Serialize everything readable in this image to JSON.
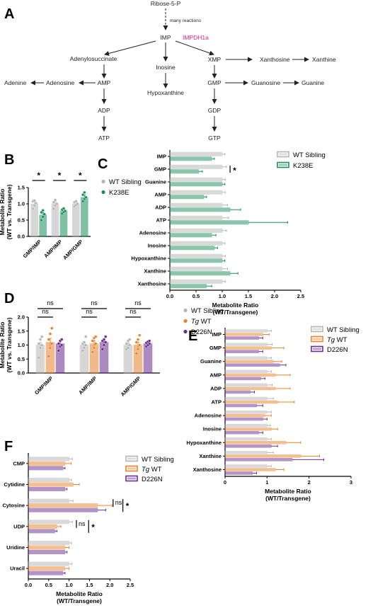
{
  "panels": {
    "A": "A",
    "B": "B",
    "C": "C",
    "D": "D",
    "E": "E",
    "F": "F"
  },
  "colors": {
    "wt": "#b5b5b5",
    "k238e": "#1a8f5c",
    "tgwt": "#e8822a",
    "d226n": "#6a2c8e",
    "enzyme": "#e0248a"
  },
  "pathway": {
    "nodes": {
      "ribose": "Ribose-5-P",
      "many_reactions": "many reactions",
      "imp": "IMP",
      "impdh": "IMPDH1a",
      "adenylosuccinate": "Adenylosuccinate",
      "inosine": "Inosine",
      "xmp": "XMP",
      "xanthosine": "Xanthosine",
      "xanthine": "Xanthine",
      "adenine": "Adenine",
      "adenosine": "Adenosine",
      "amp": "AMP",
      "hypoxanthine": "Hypoxanthine",
      "gmp": "GMP",
      "guanosine": "Guanosine",
      "guanine": "Guanine",
      "adp": "ADP",
      "gdp": "GDP",
      "atp": "ATP",
      "gtp": "GTP"
    }
  },
  "chart_data": [
    {
      "id": "B",
      "type": "bar",
      "categories": [
        "GMP/IMP",
        "AMP/IMP",
        "AMP/GMP"
      ],
      "ylabel": "Metabolite Ratio\n(WT vs. Transgene)",
      "ylabel_lines": [
        "Metabolite Ratio",
        "(WT vs. Transgene)"
      ],
      "ylim": [
        0.0,
        1.5
      ],
      "yticks": [
        "0.0",
        "0.5",
        "1.0",
        "1.5"
      ],
      "legend": [
        "WT Sibling",
        "K238E"
      ],
      "series": [
        {
          "name": "WT Sibling",
          "values": [
            1.0,
            1.0,
            1.0
          ],
          "err": [
            0.08,
            0.08,
            0.06
          ],
          "points": [
            [
              0.85,
              0.95,
              1.02,
              1.08,
              1.1
            ],
            [
              0.85,
              0.95,
              1.0,
              1.05,
              1.12
            ],
            [
              0.92,
              0.97,
              1.0,
              1.05,
              1.08
            ]
          ]
        },
        {
          "name": "K238E",
          "values": [
            0.66,
            0.78,
            1.2
          ],
          "err": [
            0.07,
            0.05,
            0.07
          ],
          "points": [
            [
              0.5,
              0.6,
              0.68,
              0.74,
              0.8
            ],
            [
              0.7,
              0.75,
              0.78,
              0.82,
              0.86
            ],
            [
              1.08,
              1.15,
              1.2,
              1.28,
              1.35
            ]
          ]
        }
      ],
      "significance": [
        "*",
        "*",
        "*"
      ]
    },
    {
      "id": "C",
      "type": "bar",
      "orientation": "horizontal",
      "categories": [
        "IMP",
        "GMP",
        "Guanine",
        "AMP",
        "ADP",
        "ATP",
        "Adenosine",
        "Inosine",
        "Hypoxanthine",
        "Xanthine",
        "Xanthosine"
      ],
      "xlabel": "Metabolite Ratio\n(WT/Transgene)",
      "xlabel_lines": [
        "Metabolite Ratio",
        "(WT/Transgene)"
      ],
      "xlim": [
        0.0,
        2.5
      ],
      "xticks": [
        "0.0",
        "0.5",
        "1.0",
        "1.5",
        "2.0",
        "2.5"
      ],
      "legend": [
        "WT Sibling",
        "K238E"
      ],
      "series": [
        {
          "name": "WT Sibling",
          "values": [
            1.0,
            1.0,
            1.0,
            1.0,
            1.0,
            1.0,
            1.0,
            1.0,
            1.0,
            1.0,
            1.0
          ],
          "err": [
            0.05,
            0.08,
            0.06,
            0.06,
            0.1,
            0.12,
            0.08,
            0.05,
            0.06,
            0.1,
            0.06
          ]
        },
        {
          "name": "K238E",
          "values": [
            0.8,
            0.55,
            1.0,
            0.65,
            1.15,
            1.5,
            0.8,
            0.85,
            1.0,
            1.15,
            0.7
          ],
          "err": [
            0.05,
            0.07,
            0.05,
            0.05,
            0.2,
            0.75,
            0.08,
            0.06,
            0.05,
            0.15,
            0.1
          ]
        }
      ],
      "significance": {
        "GMP": "*"
      }
    },
    {
      "id": "D",
      "type": "bar",
      "categories": [
        "GMP/IMP",
        "AMP/IMP",
        "AMP/GMP"
      ],
      "ylabel": "Metabolite Ratio\n(WT vs. Transgene)",
      "ylabel_lines": [
        "Metabolite Ratio",
        "(WT vs. Transgene)"
      ],
      "ylim": [
        0.0,
        2.0
      ],
      "yticks": [
        "0.0",
        "0.5",
        "1.0",
        "1.5",
        "2.0"
      ],
      "legend": [
        "WT Sibling",
        "Tg WT",
        "D226N"
      ],
      "series": [
        {
          "name": "WT Sibling",
          "values": [
            1.0,
            1.0,
            1.0
          ],
          "err": [
            0.09,
            0.08,
            0.07
          ],
          "points": [
            [
              0.55,
              0.9,
              1.0,
              1.05,
              1.2,
              1.3
            ],
            [
              0.8,
              0.9,
              1.0,
              1.05,
              1.1,
              1.3
            ],
            [
              0.85,
              0.9,
              1.0,
              1.05,
              1.15,
              1.2
            ]
          ]
        },
        {
          "name": "Tg WT",
          "values": [
            1.1,
            1.05,
            1.0
          ],
          "err": [
            0.14,
            0.1,
            0.1
          ],
          "points": [
            [
              0.6,
              0.9,
              1.05,
              1.2,
              1.4,
              1.6
            ],
            [
              0.75,
              0.9,
              1.05,
              1.15,
              1.25,
              1.3
            ],
            [
              0.7,
              0.85,
              1.0,
              1.1,
              1.2,
              1.35
            ]
          ]
        },
        {
          "name": "D226N",
          "values": [
            1.05,
            1.1,
            1.05
          ],
          "err": [
            0.08,
            0.07,
            0.05
          ],
          "points": [
            [
              0.8,
              0.95,
              1.0,
              1.05,
              1.15,
              1.2
            ],
            [
              0.85,
              1.0,
              1.1,
              1.15,
              1.2,
              1.3
            ],
            [
              0.95,
              1.0,
              1.05,
              1.08,
              1.12,
              1.15
            ]
          ]
        }
      ],
      "significance": [
        "ns",
        "ns",
        "ns",
        "ns",
        "ns",
        "ns"
      ]
    },
    {
      "id": "E",
      "type": "bar",
      "orientation": "horizontal",
      "categories": [
        "IMP",
        "GMP",
        "Guanine",
        "AMP",
        "ADP",
        "ATP",
        "Adenosine",
        "Inosine",
        "Hypoxanthine",
        "Xanthine",
        "Xanthosine"
      ],
      "xlabel": "Metabolite Ratio\n(WT/Transgene)",
      "xlabel_lines": [
        "Metabolite Ratio",
        "(WT/Transgene)"
      ],
      "xlim": [
        0,
        3
      ],
      "xticks": [
        "0",
        "1",
        "2",
        "3"
      ],
      "legend": [
        "WT Sibling",
        "Tg WT",
        "D226N"
      ],
      "series": [
        {
          "name": "WT Sibling",
          "values": [
            1.0,
            1.0,
            1.0,
            1.0,
            1.0,
            1.0,
            1.0,
            1.0,
            1.0,
            1.0,
            1.0
          ],
          "err": [
            0.1,
            0.12,
            0.1,
            0.1,
            0.12,
            0.15,
            0.1,
            0.08,
            0.1,
            0.15,
            0.1
          ]
        },
        {
          "name": "Tg WT",
          "values": [
            0.9,
            1.1,
            1.15,
            1.2,
            1.2,
            1.25,
            0.95,
            1.1,
            1.45,
            1.8,
            1.2
          ],
          "err": [
            0.15,
            0.3,
            0.2,
            0.35,
            0.35,
            0.4,
            0.15,
            0.15,
            0.35,
            0.45,
            0.2
          ]
        },
        {
          "name": "D226N",
          "values": [
            0.8,
            0.8,
            1.3,
            0.85,
            0.6,
            0.75,
            0.9,
            0.8,
            1.1,
            1.6,
            0.65
          ],
          "err": [
            0.1,
            0.1,
            0.15,
            0.1,
            0.1,
            0.15,
            0.1,
            0.1,
            0.15,
            0.75,
            0.1
          ]
        }
      ]
    },
    {
      "id": "F",
      "type": "bar",
      "orientation": "horizontal",
      "categories": [
        "CMP",
        "Cytidine",
        "Cytosine",
        "UDP",
        "Uridine",
        "Uracil"
      ],
      "xlabel": "Metabolite Ratio\n(WT/Transgene)",
      "xlabel_lines": [
        "Metabolite Ratio",
        "(WT/Transgene)"
      ],
      "xlim": [
        0.0,
        2.5
      ],
      "xticks": [
        "0.0",
        "0.5",
        "1.0",
        "1.5",
        "2.0",
        "2.5"
      ],
      "legend": [
        "WT Sibling",
        "Tg WT",
        "D226N"
      ],
      "series": [
        {
          "name": "WT Sibling",
          "values": [
            1.0,
            1.0,
            1.0,
            1.0,
            1.0,
            1.0
          ],
          "err": [
            0.08,
            0.06,
            0.1,
            0.08,
            0.06,
            0.07
          ]
        },
        {
          "name": "Tg WT",
          "values": [
            0.9,
            1.1,
            1.7,
            0.7,
            0.9,
            0.9
          ],
          "err": [
            0.15,
            0.15,
            0.35,
            0.1,
            0.1,
            0.1
          ]
        },
        {
          "name": "D226N",
          "values": [
            0.85,
            0.9,
            1.7,
            0.65,
            0.9,
            0.85
          ],
          "err": [
            0.05,
            0.05,
            0.2,
            0.05,
            0.05,
            0.05
          ]
        }
      ],
      "significance": {
        "Cytosine": [
          "ns",
          "*"
        ],
        "UDP": [
          "ns",
          "*"
        ]
      }
    }
  ]
}
